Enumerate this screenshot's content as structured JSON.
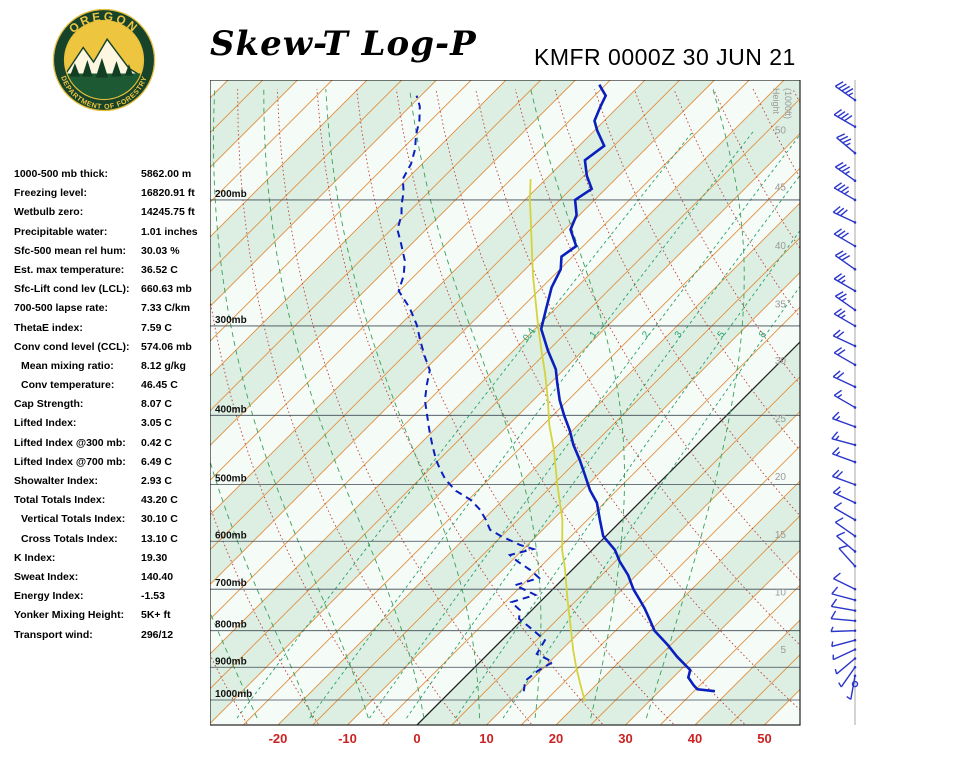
{
  "header": {
    "title": "Skew-T Log-P",
    "station_line": "KMFR 0000Z 30 JUN 21"
  },
  "logo": {
    "top_text": "OREGON",
    "bottom_text": "DEPARTMENT OF FORESTRY"
  },
  "indices": [
    {
      "label": "1000-500 mb thick:",
      "value": "5862.00 m",
      "indent": false
    },
    {
      "label": "Freezing level:",
      "value": "16820.91 ft",
      "indent": false
    },
    {
      "label": "Wetbulb zero:",
      "value": "14245.75 ft",
      "indent": false
    },
    {
      "label": "Precipitable water:",
      "value": "1.01 inches",
      "indent": false
    },
    {
      "label": "Sfc-500 mean rel hum:",
      "value": "30.03 %",
      "indent": false
    },
    {
      "label": "Est. max temperature:",
      "value": "36.52 C",
      "indent": false
    },
    {
      "label": "Sfc-Lift cond lev (LCL):",
      "value": "660.63 mb",
      "indent": false
    },
    {
      "label": "700-500 lapse rate:",
      "value": "7.33 C/km",
      "indent": false
    },
    {
      "label": "ThetaE index:",
      "value": "7.59 C",
      "indent": false
    },
    {
      "label": "Conv cond level (CCL):",
      "value": "574.06 mb",
      "indent": false
    },
    {
      "label": "Mean mixing ratio:",
      "value": "8.12 g/kg",
      "indent": true
    },
    {
      "label": "Conv temperature:",
      "value": "46.45 C",
      "indent": true
    },
    {
      "label": "Cap Strength:",
      "value": "8.07 C",
      "indent": false
    },
    {
      "label": "Lifted Index:",
      "value": "3.05 C",
      "indent": false
    },
    {
      "label": "Lifted Index @300 mb:",
      "value": "0.42 C",
      "indent": false
    },
    {
      "label": "Lifted Index @700 mb:",
      "value": "6.49 C",
      "indent": false
    },
    {
      "label": "Showalter Index:",
      "value": "2.93 C",
      "indent": false
    },
    {
      "label": "Total Totals Index:",
      "value": "43.20 C",
      "indent": false
    },
    {
      "label": "Vertical Totals Index:",
      "value": "30.10 C",
      "indent": true
    },
    {
      "label": "Cross Totals Index:",
      "value": "13.10 C",
      "indent": true
    },
    {
      "label": "K Index:",
      "value": "19.30",
      "indent": false
    },
    {
      "label": "Sweat Index:",
      "value": "140.40",
      "indent": false
    },
    {
      "label": "Energy Index:",
      "value": "-1.53",
      "indent": false
    },
    {
      "label": "Yonker Mixing Height:",
      "value": "5K+ ft",
      "indent": false
    },
    {
      "label": "Transport wind:",
      "value": "296/12",
      "indent": false
    }
  ],
  "chart_data": {
    "type": "line",
    "subtype": "skew-t-log-p",
    "title": "Skew-T Log-P",
    "station": "KMFR",
    "valid_time": "0000Z 30 JUN 21",
    "x_axis": {
      "ticks_c": [
        -20,
        -10,
        0,
        10,
        20,
        30,
        40,
        50
      ]
    },
    "pressure_lines_mb": [
      200,
      300,
      400,
      500,
      600,
      700,
      800,
      900,
      1000
    ],
    "pressure_label_suffix": "mb",
    "isotherms": {
      "min_c": -130,
      "max_c": 60,
      "step_c": 5
    },
    "mixing_ratio_lines_g_kg": [
      0.4,
      1,
      2,
      3,
      5,
      8
    ],
    "dry_adiabats_theta_c": {
      "min": -30,
      "max": 140,
      "step": 10
    },
    "moist_adiabats_surface_c": [
      -24,
      -16,
      -8,
      0,
      8,
      16,
      24,
      32
    ],
    "height_scale": {
      "title": [
        "Height",
        "(1000ft)"
      ],
      "labels": [
        {
          "text": "50",
          "p": 160
        },
        {
          "text": "45",
          "p": 192
        },
        {
          "text": "40",
          "p": 232
        },
        {
          "text": "35",
          "p": 280
        },
        {
          "text": "30",
          "p": 336
        },
        {
          "text": "25",
          "p": 405
        },
        {
          "text": "20",
          "p": 488
        },
        {
          "text": "15",
          "p": 588
        },
        {
          "text": "10",
          "p": 707
        },
        {
          "text": "5",
          "p": 851
        }
      ]
    },
    "temperature_profile_p_c": [
      [
        972,
        38.0
      ],
      [
        966,
        35.2
      ],
      [
        955,
        34.2
      ],
      [
        930,
        32.2
      ],
      [
        908,
        31.4
      ],
      [
        870,
        27.6
      ],
      [
        838,
        24.6
      ],
      [
        800,
        20.6
      ],
      [
        773,
        18.4
      ],
      [
        745,
        16.0
      ],
      [
        725,
        14.1
      ],
      [
        700,
        11.6
      ],
      [
        669,
        8.8
      ],
      [
        640,
        5.6
      ],
      [
        617,
        3.3
      ],
      [
        590,
        -0.4
      ],
      [
        560,
        -3.2
      ],
      [
        530,
        -6.1
      ],
      [
        509,
        -8.9
      ],
      [
        480,
        -12.4
      ],
      [
        462,
        -14.7
      ],
      [
        440,
        -17.8
      ],
      [
        420,
        -20.4
      ],
      [
        400,
        -23.4
      ],
      [
        381,
        -26.2
      ],
      [
        360,
        -29.1
      ],
      [
        345,
        -31.2
      ],
      [
        325,
        -35.0
      ],
      [
        303,
        -39.1
      ],
      [
        284,
        -41.3
      ],
      [
        265,
        -43.6
      ],
      [
        250,
        -44.9
      ],
      [
        240,
        -46.6
      ],
      [
        232,
        -46.0
      ],
      [
        220,
        -49.2
      ],
      [
        210,
        -50.4
      ],
      [
        200,
        -52.8
      ],
      [
        193,
        -52.0
      ],
      [
        185,
        -54.6
      ],
      [
        176,
        -57.1
      ],
      [
        168,
        -56.4
      ],
      [
        160,
        -59.6
      ],
      [
        155,
        -61.4
      ],
      [
        148,
        -62.6
      ],
      [
        143,
        -63.4
      ],
      [
        138,
        -65.9
      ]
    ],
    "dewpoint_profile_p_c": [
      [
        972,
        10.5
      ],
      [
        940,
        9.2
      ],
      [
        910,
        9.6
      ],
      [
        885,
        10.5
      ],
      [
        862,
        7.0
      ],
      [
        825,
        6.2
      ],
      [
        790,
        2.0
      ],
      [
        770,
        -0.6
      ],
      [
        749,
        -1.7
      ],
      [
        730,
        -4.1
      ],
      [
        713,
        -1.7
      ],
      [
        691,
        -6.0
      ],
      [
        675,
        -3.6
      ],
      [
        658,
        -6.0
      ],
      [
        640,
        -9.1
      ],
      [
        627,
        -11.1
      ],
      [
        615,
        -8.6
      ],
      [
        607,
        -11.1
      ],
      [
        590,
        -15.1
      ],
      [
        578,
        -17.6
      ],
      [
        560,
        -19.6
      ],
      [
        542,
        -21.9
      ],
      [
        525,
        -24.7
      ],
      [
        510,
        -28.1
      ],
      [
        492,
        -31.2
      ],
      [
        475,
        -33.6
      ],
      [
        461,
        -35.5
      ],
      [
        440,
        -38.1
      ],
      [
        420,
        -40.6
      ],
      [
        400,
        -43.1
      ],
      [
        381,
        -45.6
      ],
      [
        362,
        -47.6
      ],
      [
        346,
        -49.2
      ],
      [
        330,
        -52.1
      ],
      [
        313,
        -55.1
      ],
      [
        299,
        -57.6
      ],
      [
        283,
        -61.1
      ],
      [
        268,
        -65.1
      ],
      [
        255,
        -66.6
      ],
      [
        243,
        -68.6
      ],
      [
        230,
        -71.6
      ],
      [
        220,
        -74.1
      ],
      [
        210,
        -75.6
      ],
      [
        203,
        -77.1
      ],
      [
        195,
        -78.6
      ],
      [
        187,
        -80.6
      ],
      [
        178,
        -81.6
      ],
      [
        170,
        -83.1
      ],
      [
        162,
        -85.1
      ],
      [
        155,
        -86.6
      ],
      [
        148,
        -88.6
      ],
      [
        143,
        -90.6
      ]
    ],
    "parcel_profile_p_c": [
      [
        1005,
        20.8
      ],
      [
        950,
        17.6
      ],
      [
        900,
        14.6
      ],
      [
        850,
        11.6
      ],
      [
        800,
        8.6
      ],
      [
        725,
        3.7
      ],
      [
        650,
        -1.6
      ],
      [
        617,
        -4.3
      ],
      [
        560,
        -8.6
      ],
      [
        500,
        -14.4
      ],
      [
        447,
        -19.9
      ],
      [
        413,
        -24.1
      ],
      [
        381,
        -27.9
      ],
      [
        350,
        -32.1
      ],
      [
        324,
        -36.1
      ],
      [
        300,
        -40.0
      ],
      [
        276,
        -44.1
      ],
      [
        255,
        -48.0
      ],
      [
        235,
        -51.8
      ],
      [
        217,
        -55.5
      ],
      [
        200,
        -59.3
      ],
      [
        187,
        -62.2
      ]
    ],
    "wind_barbs_p_dir_kt": [
      [
        145,
        305,
        45
      ],
      [
        158,
        300,
        40
      ],
      [
        172,
        310,
        35
      ],
      [
        188,
        305,
        35
      ],
      [
        200,
        300,
        35
      ],
      [
        215,
        295,
        30
      ],
      [
        232,
        300,
        30
      ],
      [
        250,
        305,
        30
      ],
      [
        268,
        300,
        25
      ],
      [
        285,
        305,
        25
      ],
      [
        300,
        300,
        25
      ],
      [
        320,
        295,
        20
      ],
      [
        340,
        300,
        20
      ],
      [
        365,
        295,
        20
      ],
      [
        390,
        300,
        15
      ],
      [
        415,
        290,
        15
      ],
      [
        440,
        285,
        15
      ],
      [
        465,
        290,
        15
      ],
      [
        500,
        290,
        20
      ],
      [
        530,
        295,
        15
      ],
      [
        560,
        300,
        12
      ],
      [
        590,
        305,
        10
      ],
      [
        620,
        310,
        10
      ],
      [
        650,
        318,
        10
      ],
      [
        700,
        296,
        12
      ],
      [
        725,
        285,
        10
      ],
      [
        750,
        280,
        8
      ],
      [
        775,
        275,
        8
      ],
      [
        800,
        268,
        5
      ],
      [
        825,
        255,
        5
      ],
      [
        850,
        245,
        5
      ],
      [
        875,
        230,
        5
      ],
      [
        900,
        215,
        3
      ],
      [
        925,
        190,
        3
      ],
      [
        950,
        170,
        2
      ]
    ],
    "colors": {
      "temperature": "#0b1fbe",
      "dewpoint": "#0b1fbe",
      "parcel": "#d6d23e",
      "band": "#dcefe2",
      "plot_bg": "#f5fbf6",
      "grid": "#3f4a55",
      "isotherm": "#e09040",
      "zero_isotherm": "#222222",
      "mixing_ratio": "#27a06e",
      "dry_adiabat": "#c43c3c",
      "moist_adiabat": "#3aa05a",
      "axis_red": "#cc2222",
      "wind_barb": "#2a35c9",
      "height_text": "#9a9a9a"
    }
  }
}
